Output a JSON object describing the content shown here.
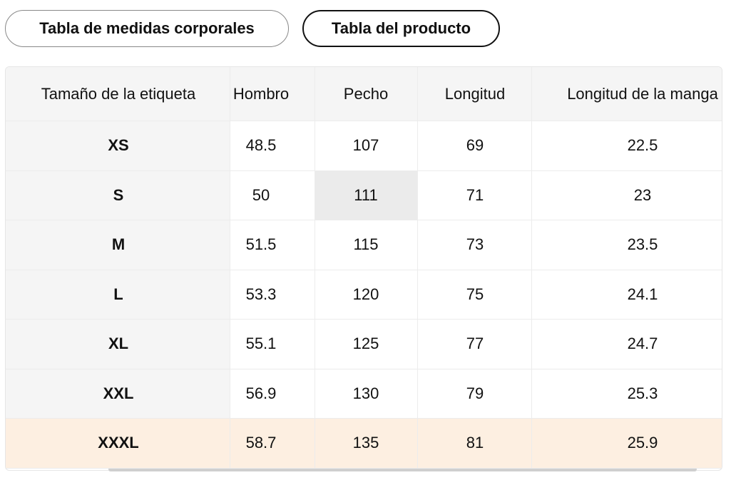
{
  "tabs": [
    "Tabla de medidas corporales",
    "Tabla del producto"
  ],
  "table": {
    "columns": [
      "Tamaño de la etiqueta",
      "Hombro",
      "Pecho",
      "Longitud",
      "Longitud de la manga"
    ],
    "rows": [
      [
        "XS",
        "48.5",
        "107",
        "69",
        "22.5"
      ],
      [
        "S",
        "50",
        "111",
        "71",
        "23"
      ],
      [
        "M",
        "51.5",
        "115",
        "73",
        "23.5"
      ],
      [
        "L",
        "53.3",
        "120",
        "75",
        "24.1"
      ],
      [
        "XL",
        "55.1",
        "125",
        "77",
        "24.7"
      ],
      [
        "XXL",
        "56.9",
        "130",
        "79",
        "25.3"
      ],
      [
        "XXXL",
        "58.7",
        "135",
        "81",
        "25.9"
      ]
    ]
  }
}
